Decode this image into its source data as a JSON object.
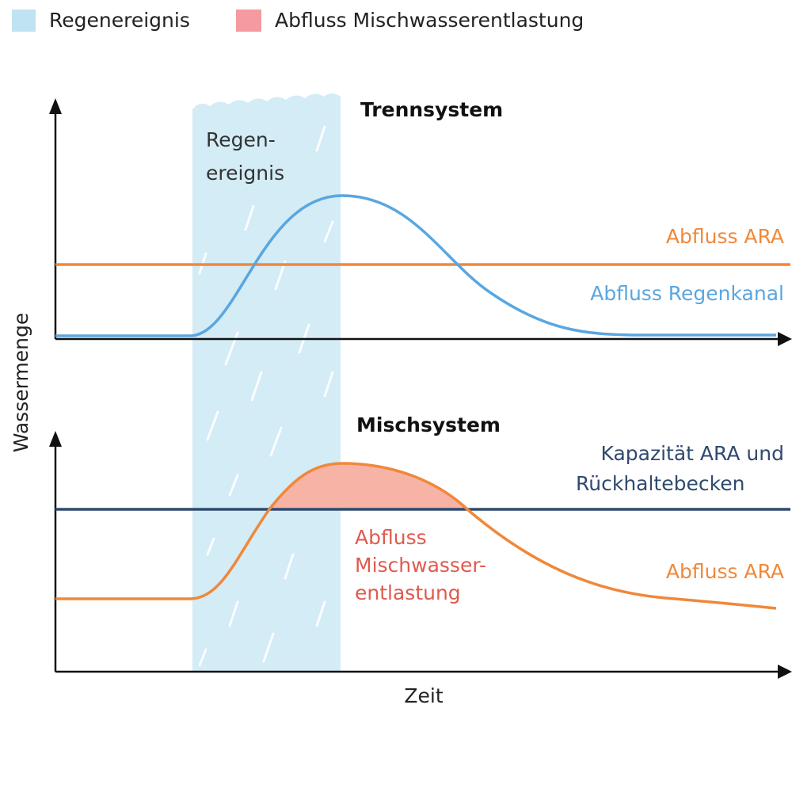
{
  "legend": {
    "items": [
      "Regenereignis",
      "Abfluss Mischwasserentlastung"
    ]
  },
  "axes": {
    "y_label": "Wassermenge",
    "x_label": "Zeit"
  },
  "rain_label": [
    "Regen-",
    "ereignis"
  ],
  "panels": [
    {
      "title": "Trennsystem",
      "labels": {
        "ara": "Abfluss ARA",
        "regenkanal": "Abfluss Regenkanal"
      }
    },
    {
      "title": "Mischsystem",
      "labels": {
        "capacity": [
          "Kapazität ARA und",
          "Rückhaltebecken"
        ],
        "overflow": [
          "Abfluss",
          "Mischwasser-",
          "entlastung"
        ],
        "ara": "Abfluss ARA"
      }
    }
  ]
}
